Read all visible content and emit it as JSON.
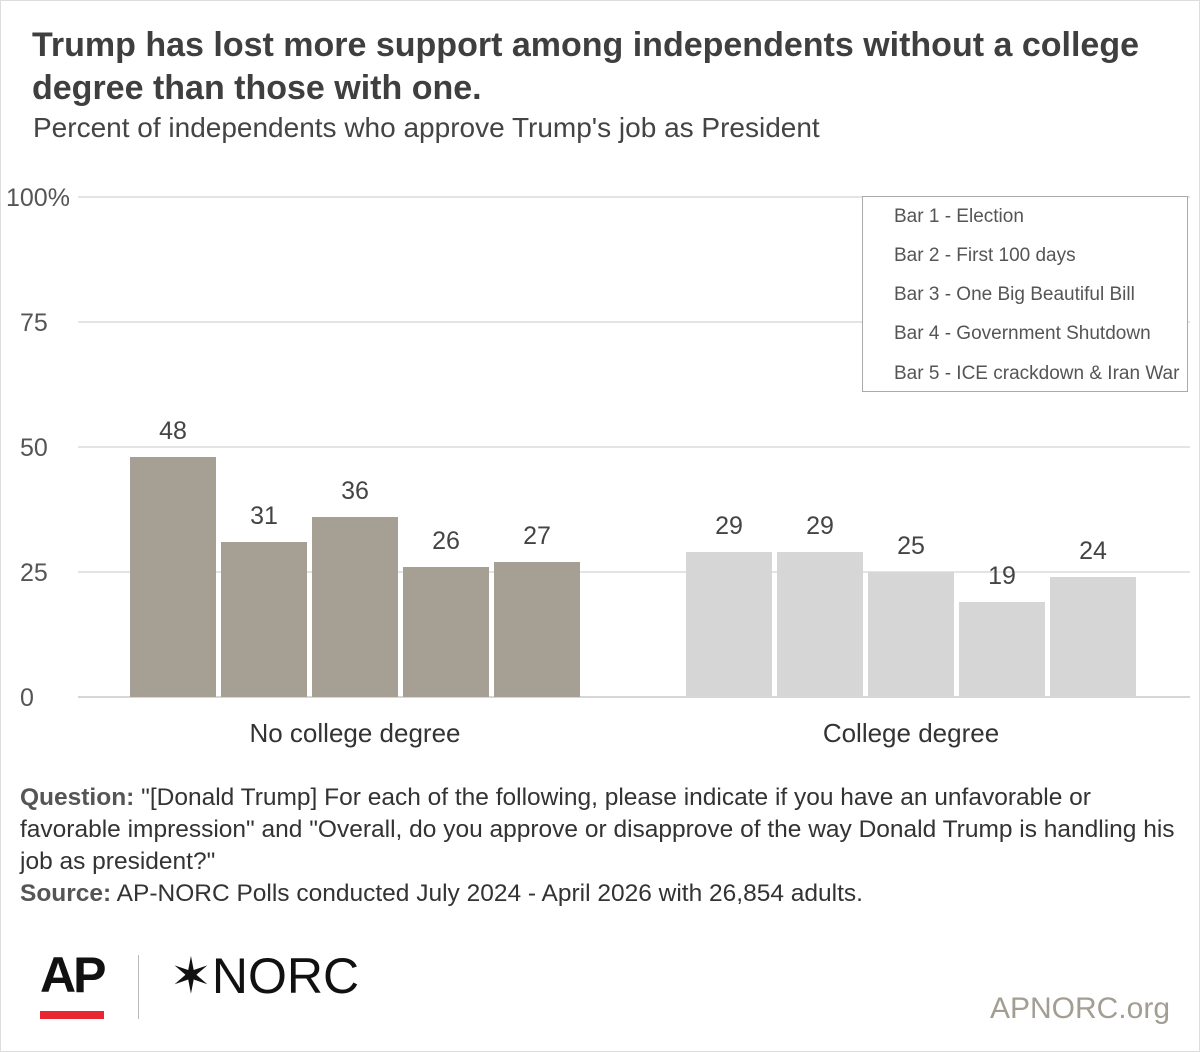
{
  "header": {
    "title": "Trump has lost more support among independents without a college degree than those with one.",
    "subtitle": "Percent of independents who approve Trump's job as President"
  },
  "chart_data": {
    "type": "bar",
    "categories": [
      "No college degree",
      "College degree"
    ],
    "series": [
      {
        "name": "Bar 1 - Election",
        "values": [
          48,
          29
        ]
      },
      {
        "name": "Bar 2 - First 100 days",
        "values": [
          31,
          29
        ]
      },
      {
        "name": "Bar 3 - One Big Beautiful Bill",
        "values": [
          36,
          25
        ]
      },
      {
        "name": "Bar 4 - Government Shutdown",
        "values": [
          26,
          19
        ]
      },
      {
        "name": "Bar 5 - ICE crackdown & Iran War",
        "values": [
          27,
          24
        ]
      }
    ],
    "ylim": [
      0,
      100
    ],
    "yticks": [
      0,
      25,
      50,
      75,
      100
    ],
    "ytick_labels": [
      "0",
      "25",
      "50",
      "75",
      "100%"
    ],
    "category_colors": [
      "#a59f94",
      "#d6d6d6"
    ],
    "grid": true,
    "legend_position": "top-right"
  },
  "notes": {
    "question_label": "Question:",
    "question_text": " \"[Donald Trump] For each of the following, please indicate if you have an unfavorable or favorable impression\" and \"Overall, do you approve or disapprove of the way Donald Trump is handling his job as president?\"",
    "source_label": "Source:",
    "source_text": " AP-NORC Polls conducted July 2024 - April 2026 with 26,854 adults."
  },
  "footer": {
    "logo_ap": "AP",
    "logo_norc": "✶NORC",
    "site": "APNORC.org"
  }
}
